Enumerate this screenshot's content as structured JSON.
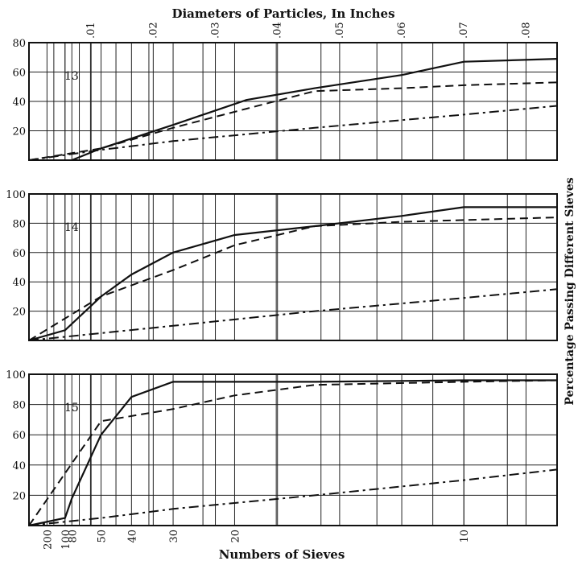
{
  "chart_data": {
    "type": "line",
    "title": "Diameters of Particles, In Inches",
    "xlabel": "Numbers of Sieves",
    "ylabel": "Percentage Passing Different Sieves",
    "top_ticks": [
      ".01",
      ".02",
      ".03",
      ".04",
      ".05",
      ".06",
      ".07",
      ".08"
    ],
    "top_tick_values": [
      0.01,
      0.02,
      0.03,
      0.04,
      0.05,
      0.06,
      0.07,
      0.08
    ],
    "sieve_ticks": [
      "200",
      "100",
      "80",
      "50",
      "40",
      "30",
      "20",
      "10"
    ],
    "sieve_tick_diameters": [
      0.0029,
      0.0058,
      0.0069,
      0.0116,
      0.0165,
      0.0232,
      0.0331,
      0.07
    ],
    "xlim": [
      0,
      0.085
    ],
    "grid": true,
    "panels": [
      {
        "label": "13",
        "ylim": [
          0,
          80
        ],
        "yticks": [
          "20",
          "40",
          "60",
          "80"
        ],
        "series": [
          {
            "style": "solid",
            "x": [
              0.0069,
              0.0116,
              0.0232,
              0.035,
              0.046,
              0.06,
              0.07,
              0.085
            ],
            "y": [
              0,
              8,
              24,
              41,
              49,
              58,
              67,
              69
            ]
          },
          {
            "style": "dashed",
            "x": [
              0,
              0.0116,
              0.0232,
              0.035,
              0.046,
              0.06,
              0.07,
              0.085
            ],
            "y": [
              0,
              8,
              22,
              35,
              47,
              49,
              51,
              53
            ]
          },
          {
            "style": "dashdot",
            "x": [
              0,
              0.0116,
              0.0232,
              0.046,
              0.07,
              0.085
            ],
            "y": [
              0,
              7,
              13,
              22,
              31,
              37
            ]
          }
        ]
      },
      {
        "label": "14",
        "ylim": [
          0,
          100
        ],
        "yticks": [
          "20",
          "40",
          "60",
          "80",
          "100"
        ],
        "series": [
          {
            "style": "solid",
            "x": [
              0,
              0.0058,
              0.0116,
              0.0165,
              0.0232,
              0.0331,
              0.046,
              0.06,
              0.07,
              0.085
            ],
            "y": [
              0,
              7,
              30,
              45,
              60,
              72,
              78,
              85,
              91,
              91
            ]
          },
          {
            "style": "dashed",
            "x": [
              0,
              0.0116,
              0.0232,
              0.0331,
              0.046,
              0.06,
              0.085
            ],
            "y": [
              0,
              30,
              48,
              65,
              78,
              81,
              84
            ]
          },
          {
            "style": "dashdot",
            "x": [
              0,
              0.0116,
              0.0232,
              0.046,
              0.07,
              0.085
            ],
            "y": [
              0,
              5,
              10,
              20,
              29,
              35
            ]
          }
        ]
      },
      {
        "label": "15",
        "ylim": [
          0,
          100
        ],
        "yticks": [
          "20",
          "40",
          "60",
          "80",
          "100"
        ],
        "series": [
          {
            "style": "solid",
            "x": [
              0,
              0.0058,
              0.0069,
              0.0116,
              0.0165,
              0.0232,
              0.0331,
              0.046,
              0.07,
              0.085
            ],
            "y": [
              0,
              5,
              18,
              60,
              85,
              95,
              95,
              95,
              96,
              96
            ]
          },
          {
            "style": "dashed",
            "x": [
              0,
              0.0116,
              0.0232,
              0.0331,
              0.046,
              0.07,
              0.085
            ],
            "y": [
              0,
              69,
              77,
              86,
              93,
              95,
              96
            ]
          },
          {
            "style": "dashdot",
            "x": [
              0,
              0.0116,
              0.0232,
              0.046,
              0.07,
              0.085
            ],
            "y": [
              0,
              5,
              11,
              20,
              30,
              37
            ]
          }
        ]
      }
    ]
  }
}
